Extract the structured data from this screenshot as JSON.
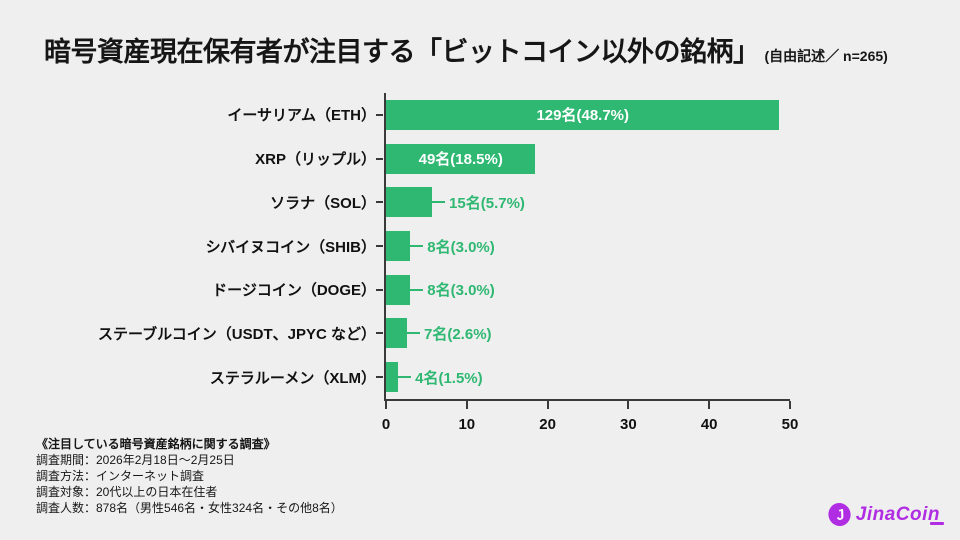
{
  "title": {
    "main": "暗号資産現在保有者が注目する「ビットコイン以外の銘柄」",
    "suffix": "(自由記述／ n=265)"
  },
  "chart_data": {
    "type": "bar",
    "orientation": "horizontal",
    "title": "暗号資産現在保有者が注目する「ビットコイン以外の銘柄」(自由記述／ n=265)",
    "categories": [
      "イーサリアム（ETH）",
      "XRP（リップル）",
      "ソラナ（SOL）",
      "シバイヌコイン（SHIB）",
      "ドージコイン（DOGE）",
      "ステーブルコイン（USDT、JPYC など）",
      "ステラルーメン（XLM）"
    ],
    "counts": [
      129,
      49,
      15,
      8,
      8,
      7,
      4
    ],
    "values_percent": [
      48.7,
      18.5,
      5.7,
      3.0,
      3.0,
      2.6,
      1.5
    ],
    "bar_labels": [
      "129名(48.7%)",
      "49名(18.5%)",
      "15名(5.7%)",
      "8名(3.0%)",
      "8名(3.0%)",
      "7名(2.6%)",
      "4名(1.5%)"
    ],
    "label_inside": [
      true,
      true,
      false,
      false,
      false,
      false,
      false
    ],
    "xticks": [
      0,
      10,
      20,
      30,
      40,
      50
    ],
    "xlim": [
      0,
      50
    ],
    "grid": false,
    "legend": "none",
    "bar_color": "#2EB872"
  },
  "footer": {
    "survey_title": "《注目している暗号資産銘柄に関する調査》",
    "lines": [
      "調査期間：2026年2月18日～2月25日",
      "調査方法：インターネット調査",
      "調査対象：20代以上の日本在住者",
      "調査人数：878名（男性546名・女性324名・その他8名）"
    ]
  },
  "logo": {
    "text": "JinaCoin",
    "color": "#B02DE3",
    "icon_letter": "J"
  },
  "colors": {
    "background": "#EFEFEF",
    "bar": "#2EB872",
    "axis": "#3A3A3A",
    "title_text": "#161616",
    "value_inside": "#FFFFFF",
    "value_outside": "#2EB872"
  }
}
